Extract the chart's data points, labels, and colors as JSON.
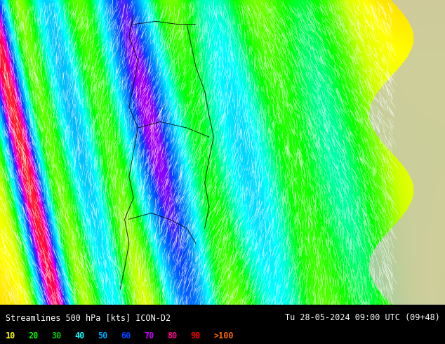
{
  "title_left": "Streamlines 500 hPa [kts] ICON-D2",
  "title_right": "Tu 28-05-2024 09:00 UTC (09+48)",
  "legend_labels": [
    "10",
    "20",
    "30",
    "40",
    "50",
    "60",
    "70",
    "80",
    "90",
    ">100"
  ],
  "legend_colors": [
    "#ffff00",
    "#00ff00",
    "#00cc00",
    "#00ffff",
    "#00aaff",
    "#0044ff",
    "#cc00ff",
    "#ff0088",
    "#ff0000",
    "#ff6600"
  ],
  "background_color": "#000000",
  "figsize": [
    6.34,
    4.9
  ],
  "dpi": 100,
  "colormap_stops": [
    [
      0.0,
      "#ffaa00"
    ],
    [
      0.08,
      "#ffff00"
    ],
    [
      0.15,
      "#ccff00"
    ],
    [
      0.22,
      "#66ff00"
    ],
    [
      0.3,
      "#00ff00"
    ],
    [
      0.38,
      "#00ffaa"
    ],
    [
      0.45,
      "#00ffff"
    ],
    [
      0.52,
      "#00ccff"
    ],
    [
      0.6,
      "#0088ff"
    ],
    [
      0.68,
      "#0044ff"
    ],
    [
      0.75,
      "#8800ff"
    ],
    [
      0.82,
      "#ff00cc"
    ],
    [
      0.9,
      "#ff0044"
    ],
    [
      1.0,
      "#ff6600"
    ]
  ]
}
